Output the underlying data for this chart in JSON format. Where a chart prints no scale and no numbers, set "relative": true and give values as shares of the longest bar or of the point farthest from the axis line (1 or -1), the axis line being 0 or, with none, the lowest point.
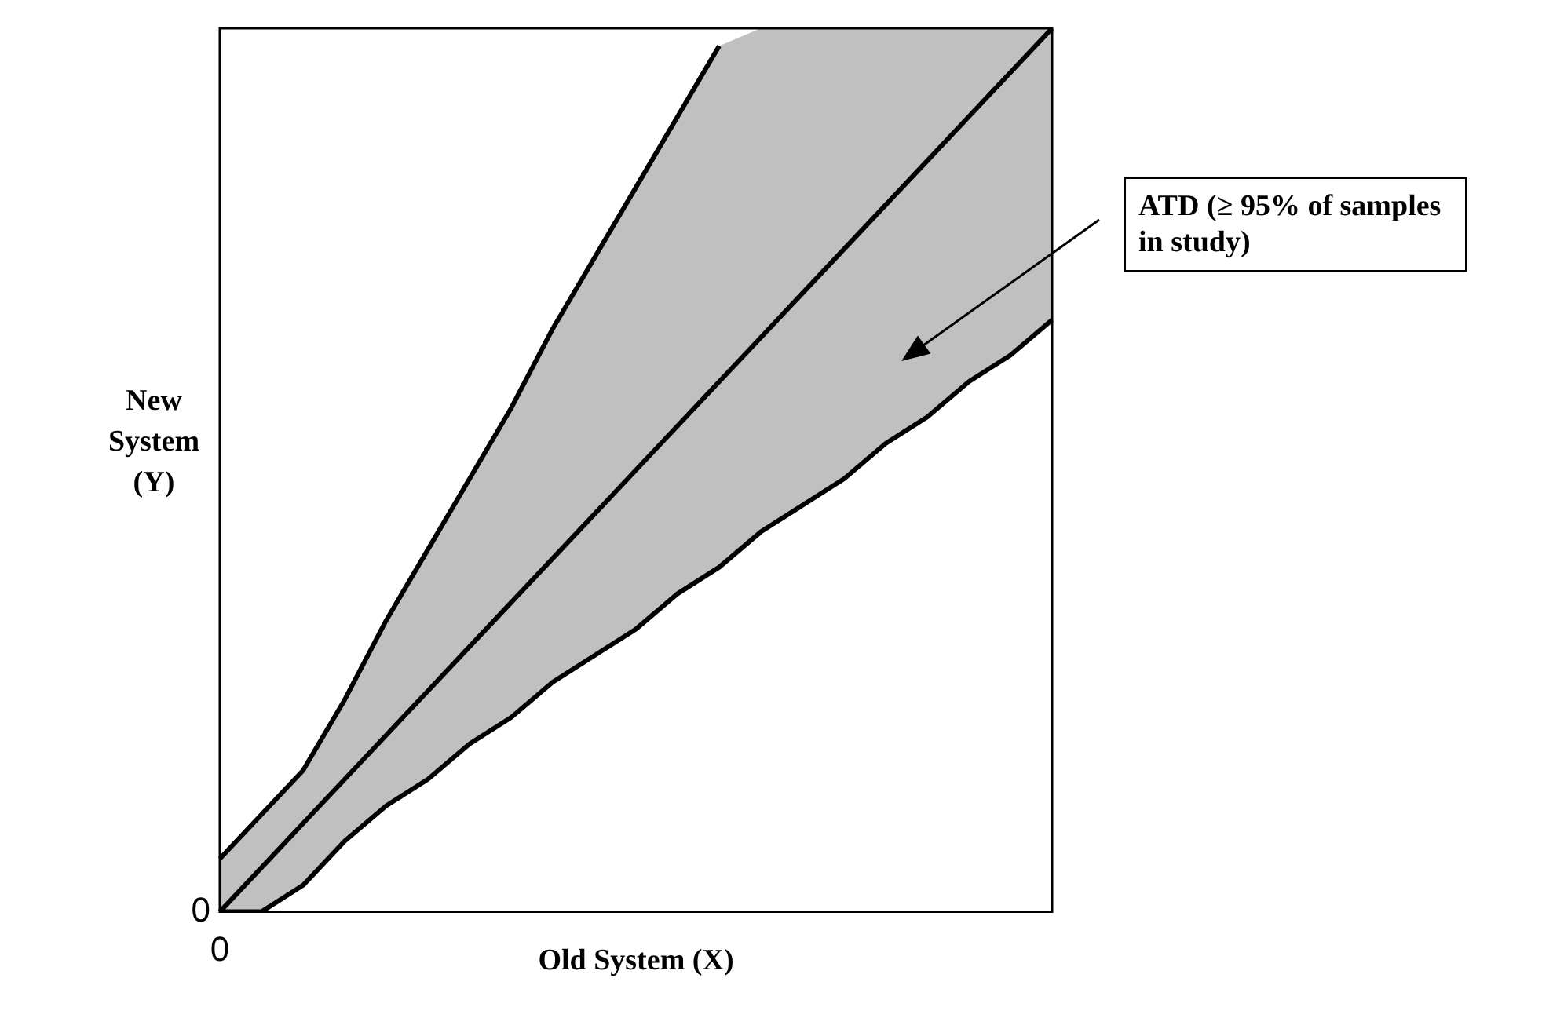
{
  "chart_data": {
    "type": "line",
    "relative": true,
    "xlabel": "Old System (X)",
    "ylabel": "New System (Y)",
    "categories": [
      null,
      null,
      null,
      null,
      null,
      null,
      null,
      null,
      null,
      null,
      null,
      null,
      null,
      null,
      null,
      null,
      null,
      null,
      null,
      null,
      null
    ],
    "series": [
      {
        "color": "#000000",
        "values": [
          0,
          0.05,
          0.1,
          0.15,
          0.2,
          0.25,
          0.3,
          0.35,
          0.4,
          0.45,
          0.5,
          0.55,
          0.6,
          0.65,
          0.7,
          0.75,
          0.8,
          0.85,
          0.9,
          0.95,
          1
        ],
        "lower": [
          0,
          0,
          0.03,
          0.08,
          0.12,
          0.15,
          0.19,
          0.22,
          0.26,
          0.29,
          0.32,
          0.36,
          0.39,
          0.43,
          0.46,
          0.49,
          0.53,
          0.56,
          0.6,
          0.63,
          0.67
        ],
        "upper": [
          0.06,
          0.11,
          0.16,
          0.24,
          0.33,
          0.41,
          0.49,
          0.57,
          0.66,
          0.74,
          0.82,
          0.9,
          0.98,
          1,
          1,
          1,
          1,
          1,
          1,
          1,
          1
        ]
      },
      {
        "color": "#000000",
        "values": [
          0,
          0,
          0.03,
          0.08,
          0.12,
          0.15,
          0.19,
          0.22,
          0.26,
          0.29,
          0.32,
          0.36,
          0.39,
          0.43,
          0.46,
          0.49,
          0.53,
          0.56,
          0.6,
          0.63,
          0.67
        ]
      },
      {
        "color": "#000000",
        "values": [
          0.06,
          0.11,
          0.16,
          0.24,
          0.33,
          0.41,
          0.49,
          0.57,
          0.66,
          0.74,
          0.82,
          0.9,
          0.98,
          null,
          null,
          null,
          null,
          null,
          null,
          null,
          null
        ]
      }
    ],
    "annotations": [
      "ATD (≥ 95% of samples in study)",
      "0",
      "0"
    ],
    "grid": false,
    "legend": false,
    "marker": "none",
    "line_style": "solid"
  }
}
